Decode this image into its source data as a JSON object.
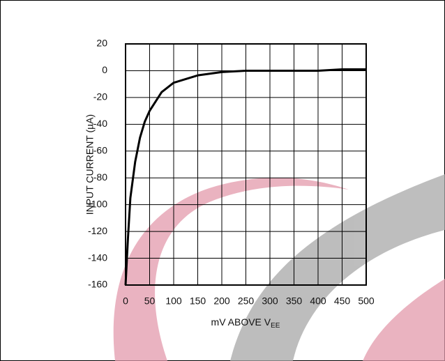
{
  "chart_data": {
    "type": "line",
    "y_label": "INPUT CURRENT (µA)",
    "x_label": {
      "text": "mV ABOVE V",
      "subscript": "EE"
    },
    "x": [
      0,
      5,
      10,
      20,
      30,
      40,
      50,
      75,
      100,
      150,
      200,
      250,
      300,
      350,
      400,
      450,
      500
    ],
    "series": [
      {
        "color": "#000000",
        "values": [
          -160,
          -125,
          -95,
          -68,
          -50,
          -38,
          -30,
          -16,
          -9,
          -3.5,
          -1,
          0,
          0,
          0,
          0,
          1,
          1
        ]
      }
    ],
    "xlim": [
      0,
      500
    ],
    "xticks": [
      0,
      50,
      100,
      150,
      200,
      250,
      300,
      350,
      400,
      450,
      500
    ],
    "ylim": [
      -160,
      20
    ],
    "yticks": [
      20,
      0,
      -20,
      -40,
      -60,
      -80,
      -100,
      -120,
      -140,
      -160
    ],
    "grid": true
  }
}
